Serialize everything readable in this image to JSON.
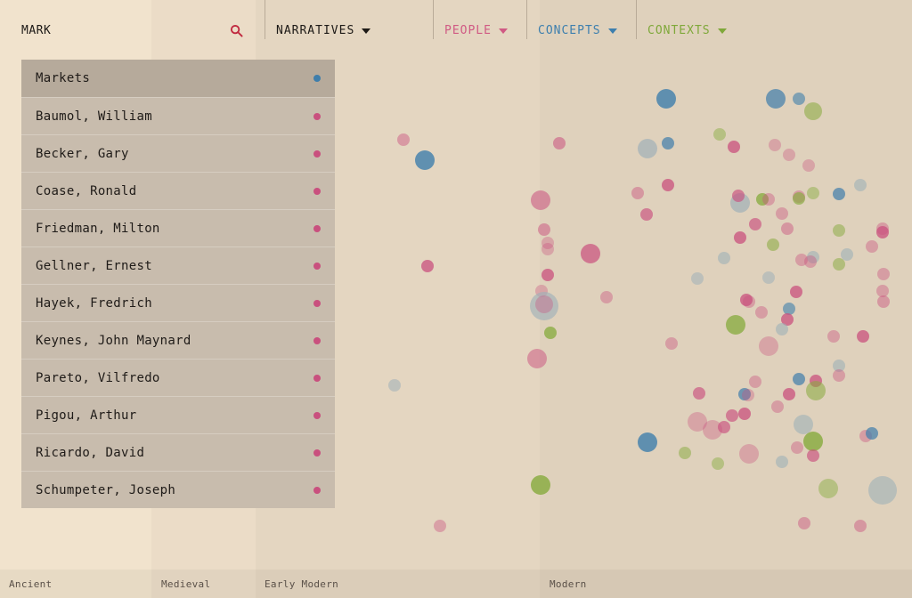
{
  "search": {
    "query": "MARK"
  },
  "nav": {
    "narratives": {
      "label": "NARRATIVES",
      "color": "#1d1a17"
    },
    "people": {
      "label": "PEOPLE",
      "color": "#d05a84"
    },
    "concepts": {
      "label": "CONCEPTS",
      "color": "#3d7fae"
    },
    "contexts": {
      "label": "CONTEXTS",
      "color": "#7fa83a"
    }
  },
  "dropdown": {
    "items": [
      {
        "label": "Markets",
        "type": "concept"
      },
      {
        "label": "Baumol, William",
        "type": "person"
      },
      {
        "label": "Becker, Gary",
        "type": "person"
      },
      {
        "label": "Coase, Ronald",
        "type": "person"
      },
      {
        "label": "Friedman, Milton",
        "type": "person"
      },
      {
        "label": "Gellner, Ernest",
        "type": "person"
      },
      {
        "label": "Hayek, Fredrich",
        "type": "person"
      },
      {
        "label": "Keynes, John Maynard",
        "type": "person"
      },
      {
        "label": "Pareto, Vilfredo",
        "type": "person"
      },
      {
        "label": "Pigou, Arthur",
        "type": "person"
      },
      {
        "label": "Ricardo, David",
        "type": "person"
      },
      {
        "label": "Schumpeter, Joseph",
        "type": "person"
      }
    ]
  },
  "colors": {
    "person": "#c9507e",
    "concept": "#3f7eab",
    "context": "#86aa3c",
    "neutral": "#9fb0b8",
    "search_icon": "#c0283e"
  },
  "eras": [
    {
      "label": "Ancient"
    },
    {
      "label": "Medieval"
    },
    {
      "label": "Early Modern"
    },
    {
      "label": "Modern"
    }
  ]
}
